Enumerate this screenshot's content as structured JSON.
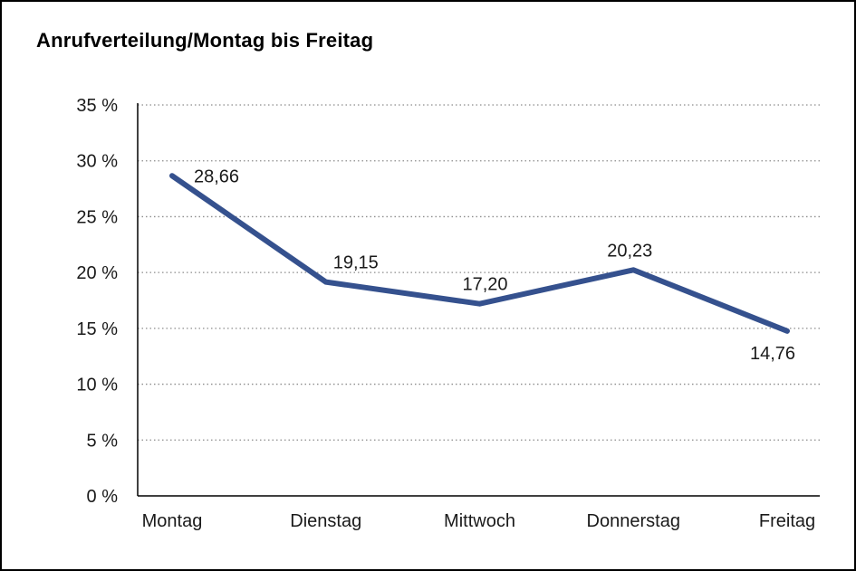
{
  "chart_data": {
    "type": "line",
    "title": "Anrufverteilung/Montag bis Freitag",
    "categories": [
      "Montag",
      "Dienstag",
      "Mittwoch",
      "Donnerstag",
      "Freitag"
    ],
    "values": [
      28.66,
      19.15,
      17.2,
      20.23,
      14.76
    ],
    "value_labels": [
      "28,66",
      "19,15",
      "17,20",
      "20,23",
      "14,76"
    ],
    "ylabel": "",
    "xlabel": "",
    "ylim": [
      0,
      35
    ],
    "y_step": 5,
    "y_tick_labels": [
      "0 %",
      "5 %",
      "10 %",
      "15 %",
      "20 %",
      "25 %",
      "30 %",
      "35 %"
    ],
    "grid": true,
    "grid_style": "dotted",
    "legend": "none",
    "line_color": "#35518E",
    "axis_color": "#000000",
    "grid_color": "#8c8c8c",
    "background": "#FFFFFF"
  }
}
